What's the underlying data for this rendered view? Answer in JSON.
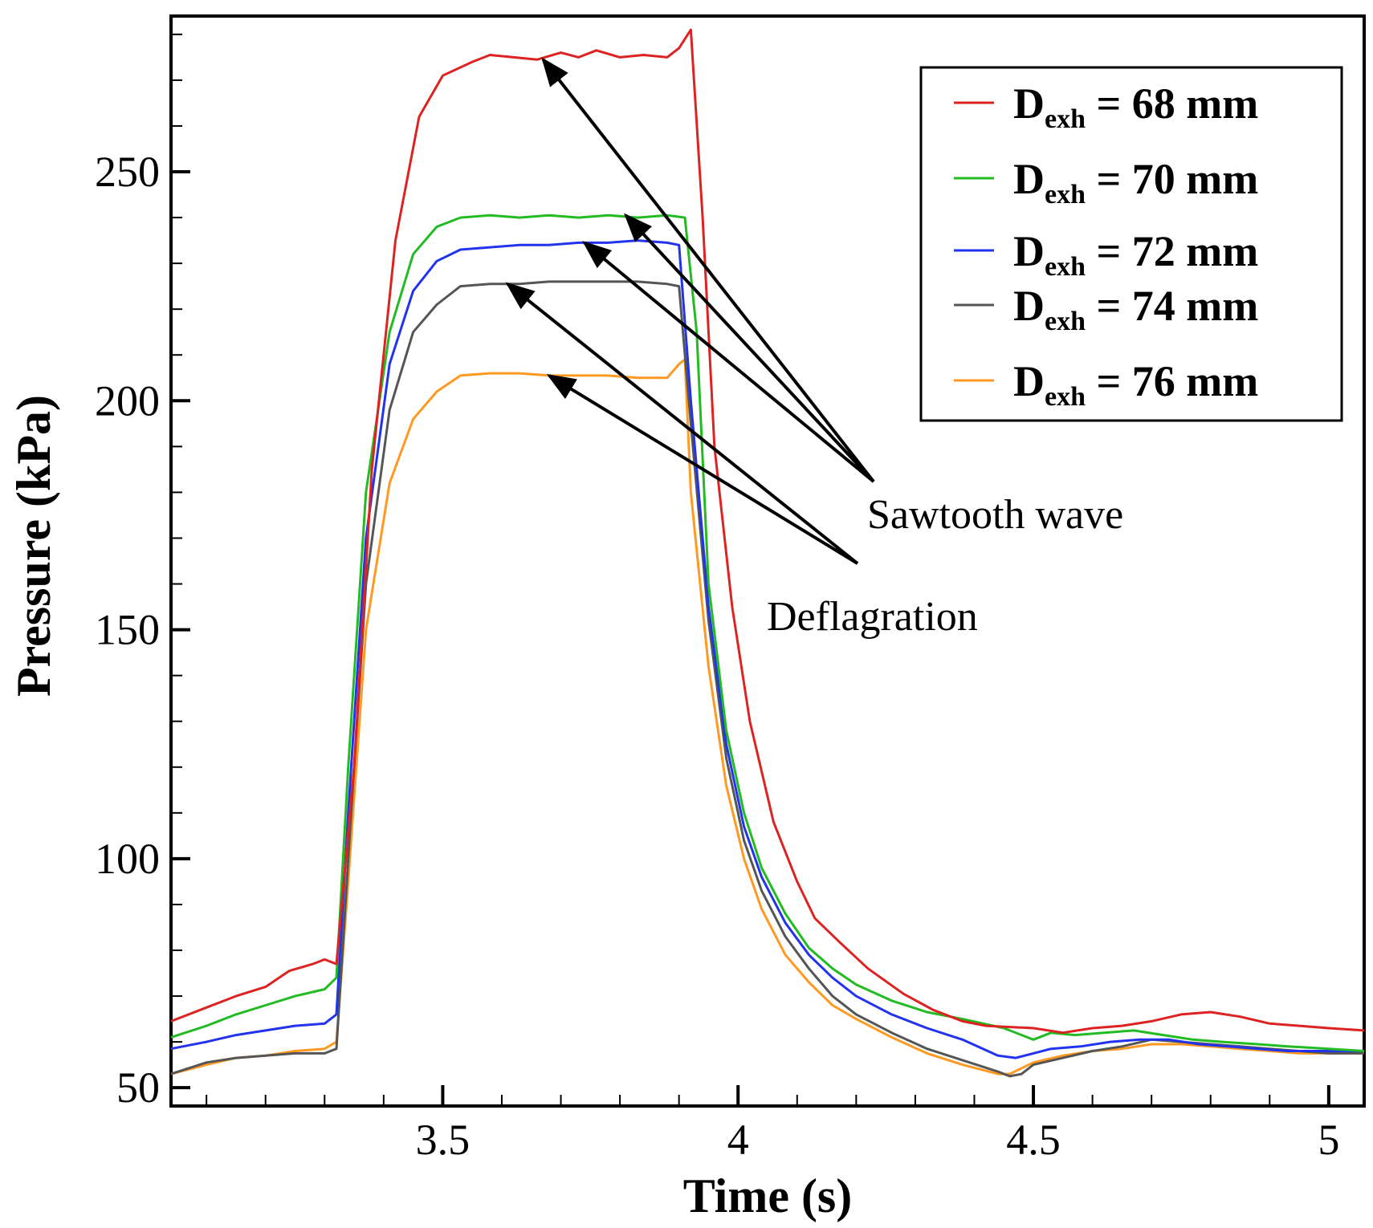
{
  "chart_data": {
    "type": "line",
    "title": "",
    "xlabel": "Time (s)",
    "ylabel": "Pressure (kPa)",
    "xlim": [
      3.04,
      5.06
    ],
    "ylim": [
      46,
      284
    ],
    "x_ticks": [
      3.5,
      4,
      4.5,
      5
    ],
    "x_tick_labels": [
      "3.5",
      "4",
      "4.5",
      "5"
    ],
    "y_ticks": [
      50,
      100,
      150,
      200,
      250
    ],
    "y_tick_labels": [
      "50",
      "100",
      "150",
      "200",
      "250"
    ],
    "grid": false,
    "legend_position": "top-right",
    "series": [
      {
        "name": "68 mm",
        "legend_main": "D",
        "legend_sub": "exh",
        "legend_tail": " = 68 mm",
        "color": "#dd2222",
        "points": [
          [
            3.04,
            64.5
          ],
          [
            3.1,
            67.5
          ],
          [
            3.15,
            70
          ],
          [
            3.2,
            72
          ],
          [
            3.24,
            75.5
          ],
          [
            3.28,
            77
          ],
          [
            3.3,
            78
          ],
          [
            3.32,
            77
          ],
          [
            3.35,
            120
          ],
          [
            3.38,
            185
          ],
          [
            3.42,
            235
          ],
          [
            3.46,
            262
          ],
          [
            3.5,
            271
          ],
          [
            3.55,
            274
          ],
          [
            3.58,
            275.5
          ],
          [
            3.62,
            275
          ],
          [
            3.66,
            274.5
          ],
          [
            3.7,
            276
          ],
          [
            3.73,
            275
          ],
          [
            3.76,
            276.5
          ],
          [
            3.8,
            275
          ],
          [
            3.84,
            275.5
          ],
          [
            3.88,
            275
          ],
          [
            3.9,
            277
          ],
          [
            3.92,
            281
          ],
          [
            3.94,
            240
          ],
          [
            3.96,
            190
          ],
          [
            3.99,
            155
          ],
          [
            4.02,
            130
          ],
          [
            4.06,
            108
          ],
          [
            4.1,
            95
          ],
          [
            4.13,
            87
          ],
          [
            4.17,
            82
          ],
          [
            4.22,
            76
          ],
          [
            4.28,
            70.5
          ],
          [
            4.33,
            67
          ],
          [
            4.38,
            64.5
          ],
          [
            4.42,
            63.5
          ],
          [
            4.5,
            63
          ],
          [
            4.55,
            62
          ],
          [
            4.6,
            63
          ],
          [
            4.65,
            63.5
          ],
          [
            4.7,
            64.5
          ],
          [
            4.75,
            66
          ],
          [
            4.8,
            66.5
          ],
          [
            4.85,
            65.5
          ],
          [
            4.9,
            64
          ],
          [
            4.95,
            63.5
          ],
          [
            5.0,
            63
          ],
          [
            5.06,
            62.5
          ]
        ]
      },
      {
        "name": "70 mm",
        "legend_main": "D",
        "legend_sub": "exh",
        "legend_tail": " = 70 mm",
        "color": "#22bb22",
        "points": [
          [
            3.04,
            61
          ],
          [
            3.1,
            63.5
          ],
          [
            3.15,
            66
          ],
          [
            3.2,
            68
          ],
          [
            3.25,
            70
          ],
          [
            3.3,
            71.5
          ],
          [
            3.32,
            74
          ],
          [
            3.34,
            120
          ],
          [
            3.37,
            180
          ],
          [
            3.41,
            215
          ],
          [
            3.45,
            232
          ],
          [
            3.49,
            238
          ],
          [
            3.53,
            240
          ],
          [
            3.58,
            240.5
          ],
          [
            3.63,
            240
          ],
          [
            3.68,
            240.5
          ],
          [
            3.73,
            240
          ],
          [
            3.78,
            240.5
          ],
          [
            3.83,
            240
          ],
          [
            3.88,
            240.5
          ],
          [
            3.91,
            240
          ],
          [
            3.93,
            215
          ],
          [
            3.95,
            160
          ],
          [
            3.98,
            128
          ],
          [
            4.01,
            110
          ],
          [
            4.04,
            98
          ],
          [
            4.08,
            88
          ],
          [
            4.12,
            80.5
          ],
          [
            4.16,
            76
          ],
          [
            4.2,
            72.5
          ],
          [
            4.26,
            69
          ],
          [
            4.32,
            66.5
          ],
          [
            4.38,
            65
          ],
          [
            4.45,
            63
          ],
          [
            4.5,
            60.5
          ],
          [
            4.53,
            62
          ],
          [
            4.57,
            61.5
          ],
          [
            4.62,
            62
          ],
          [
            4.67,
            62.5
          ],
          [
            4.72,
            61.5
          ],
          [
            4.77,
            60.5
          ],
          [
            4.82,
            60
          ],
          [
            4.88,
            59.5
          ],
          [
            4.93,
            59
          ],
          [
            5.0,
            58.5
          ],
          [
            5.06,
            58
          ]
        ]
      },
      {
        "name": "72 mm",
        "legend_main": "D",
        "legend_sub": "exh",
        "legend_tail": " = 72 mm",
        "color": "#2233ee",
        "points": [
          [
            3.04,
            58.5
          ],
          [
            3.1,
            60
          ],
          [
            3.15,
            61.5
          ],
          [
            3.2,
            62.5
          ],
          [
            3.25,
            63.5
          ],
          [
            3.3,
            64
          ],
          [
            3.32,
            66
          ],
          [
            3.34,
            110
          ],
          [
            3.37,
            170
          ],
          [
            3.41,
            208
          ],
          [
            3.45,
            224
          ],
          [
            3.49,
            230.5
          ],
          [
            3.53,
            233
          ],
          [
            3.58,
            233.5
          ],
          [
            3.63,
            234
          ],
          [
            3.68,
            234
          ],
          [
            3.73,
            234.5
          ],
          [
            3.78,
            234.5
          ],
          [
            3.83,
            235
          ],
          [
            3.88,
            234.5
          ],
          [
            3.9,
            234
          ],
          [
            3.92,
            200
          ],
          [
            3.95,
            155
          ],
          [
            3.98,
            125
          ],
          [
            4.01,
            107
          ],
          [
            4.04,
            96
          ],
          [
            4.08,
            86
          ],
          [
            4.12,
            79
          ],
          [
            4.16,
            74
          ],
          [
            4.2,
            70
          ],
          [
            4.26,
            66
          ],
          [
            4.32,
            63
          ],
          [
            4.38,
            60.5
          ],
          [
            4.44,
            57
          ],
          [
            4.47,
            56.5
          ],
          [
            4.5,
            57.5
          ],
          [
            4.53,
            58.5
          ],
          [
            4.58,
            59
          ],
          [
            4.63,
            60
          ],
          [
            4.68,
            60.5
          ],
          [
            4.73,
            60.5
          ],
          [
            4.78,
            59.5
          ],
          [
            4.83,
            59
          ],
          [
            4.88,
            58.5
          ],
          [
            4.93,
            58
          ],
          [
            5.0,
            58
          ],
          [
            5.06,
            58
          ]
        ]
      },
      {
        "name": "74 mm",
        "legend_main": "D",
        "legend_sub": "exh",
        "legend_tail": " = 74 mm",
        "color": "#555555",
        "points": [
          [
            3.04,
            53
          ],
          [
            3.1,
            55.5
          ],
          [
            3.15,
            56.5
          ],
          [
            3.2,
            57
          ],
          [
            3.25,
            57.5
          ],
          [
            3.3,
            57.5
          ],
          [
            3.32,
            58.5
          ],
          [
            3.34,
            100
          ],
          [
            3.37,
            160
          ],
          [
            3.41,
            198
          ],
          [
            3.45,
            215
          ],
          [
            3.49,
            221
          ],
          [
            3.53,
            225
          ],
          [
            3.58,
            225.5
          ],
          [
            3.63,
            225.5
          ],
          [
            3.68,
            226
          ],
          [
            3.73,
            226
          ],
          [
            3.78,
            226
          ],
          [
            3.83,
            226
          ],
          [
            3.88,
            225.5
          ],
          [
            3.9,
            225
          ],
          [
            3.92,
            195
          ],
          [
            3.95,
            152
          ],
          [
            3.98,
            122
          ],
          [
            4.01,
            104
          ],
          [
            4.04,
            93
          ],
          [
            4.08,
            83
          ],
          [
            4.12,
            76
          ],
          [
            4.16,
            70
          ],
          [
            4.2,
            66
          ],
          [
            4.26,
            62
          ],
          [
            4.32,
            58.5
          ],
          [
            4.38,
            56
          ],
          [
            4.44,
            53.5
          ],
          [
            4.46,
            52.5
          ],
          [
            4.48,
            53
          ],
          [
            4.5,
            55
          ],
          [
            4.55,
            56.5
          ],
          [
            4.6,
            58
          ],
          [
            4.65,
            59
          ],
          [
            4.7,
            60.5
          ],
          [
            4.75,
            60
          ],
          [
            4.8,
            59.5
          ],
          [
            4.85,
            59
          ],
          [
            4.9,
            58.5
          ],
          [
            4.95,
            58
          ],
          [
            5.0,
            57.5
          ],
          [
            5.06,
            57.5
          ]
        ]
      },
      {
        "name": "76 mm",
        "legend_main": "D",
        "legend_sub": "exh",
        "legend_tail": " = 76 mm",
        "color": "#ff9922",
        "points": [
          [
            3.04,
            53
          ],
          [
            3.1,
            55
          ],
          [
            3.15,
            56.5
          ],
          [
            3.2,
            57
          ],
          [
            3.25,
            58
          ],
          [
            3.3,
            58.5
          ],
          [
            3.32,
            60
          ],
          [
            3.34,
            95
          ],
          [
            3.37,
            150
          ],
          [
            3.41,
            182
          ],
          [
            3.45,
            196
          ],
          [
            3.49,
            202
          ],
          [
            3.53,
            205.5
          ],
          [
            3.58,
            206
          ],
          [
            3.63,
            206
          ],
          [
            3.68,
            205.5
          ],
          [
            3.73,
            205.5
          ],
          [
            3.78,
            205.5
          ],
          [
            3.83,
            205
          ],
          [
            3.88,
            205
          ],
          [
            3.9,
            208
          ],
          [
            3.91,
            209
          ],
          [
            3.92,
            180
          ],
          [
            3.95,
            142
          ],
          [
            3.98,
            116
          ],
          [
            4.01,
            100
          ],
          [
            4.04,
            89
          ],
          [
            4.08,
            79
          ],
          [
            4.12,
            73
          ],
          [
            4.16,
            68
          ],
          [
            4.2,
            65
          ],
          [
            4.26,
            61
          ],
          [
            4.32,
            57.5
          ],
          [
            4.38,
            55
          ],
          [
            4.44,
            53
          ],
          [
            4.46,
            53
          ],
          [
            4.5,
            55.5
          ],
          [
            4.55,
            57
          ],
          [
            4.6,
            58
          ],
          [
            4.65,
            58.5
          ],
          [
            4.7,
            59.5
          ],
          [
            4.75,
            59.5
          ],
          [
            4.8,
            59
          ],
          [
            4.85,
            58.5
          ],
          [
            4.9,
            58
          ],
          [
            4.95,
            57.5
          ],
          [
            5.0,
            57.5
          ],
          [
            5.06,
            57.5
          ]
        ]
      }
    ],
    "annotations": [
      {
        "text": "Sawtooth wave",
        "series_targets": [
          [
            3.67,
            274.5
          ],
          [
            3.81,
            240.5
          ],
          [
            3.74,
            234.5
          ]
        ]
      },
      {
        "text": "Deflagration",
        "series_targets": [
          [
            3.61,
            225.5
          ],
          [
            3.68,
            205.5
          ]
        ]
      }
    ]
  }
}
